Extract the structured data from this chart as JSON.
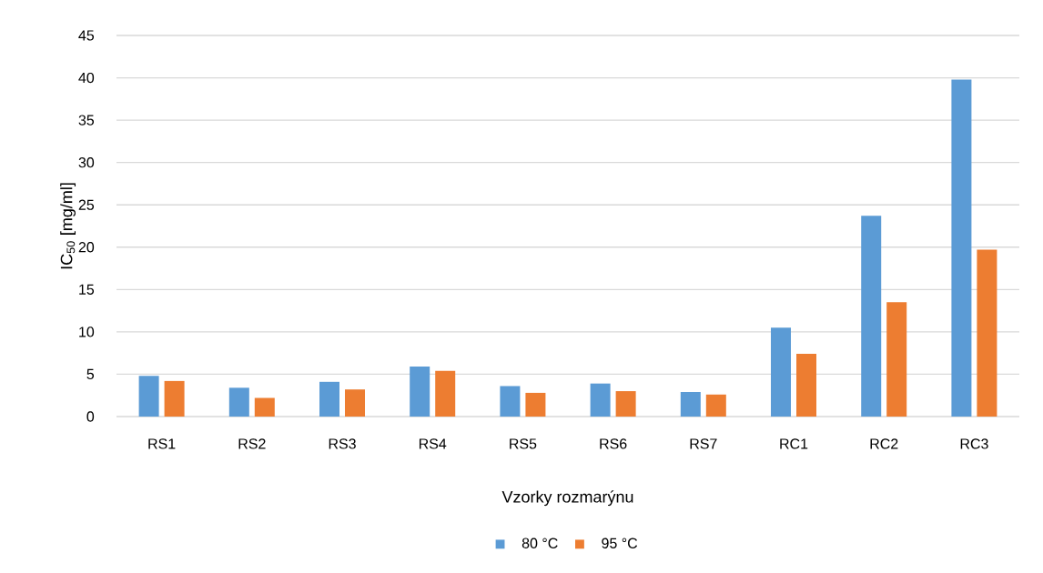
{
  "chart_data": {
    "type": "bar",
    "xlabel": "Vzorky rozmarýnu",
    "ylabel": "IC$_{50}$ [mg/ml]",
    "categories": [
      "RS1",
      "RS2",
      "RS3",
      "RS4",
      "RS5",
      "RS6",
      "RS7",
      "RC1",
      "RC2",
      "RC3"
    ],
    "series": [
      {
        "name": "80 °C",
        "color": "#5b9bd5",
        "values": [
          4.8,
          3.4,
          4.1,
          5.9,
          3.6,
          3.9,
          2.9,
          10.5,
          23.7,
          39.8
        ]
      },
      {
        "name": "95 °C",
        "color": "#ed7d31",
        "values": [
          4.2,
          2.2,
          3.2,
          5.4,
          2.8,
          3.0,
          2.6,
          7.4,
          13.5,
          19.7
        ]
      }
    ],
    "ylim": [
      0,
      45
    ],
    "yticks": [
      0,
      5,
      10,
      15,
      20,
      25,
      30,
      35,
      40,
      45
    ],
    "grid": "y",
    "legend": "bottom"
  }
}
